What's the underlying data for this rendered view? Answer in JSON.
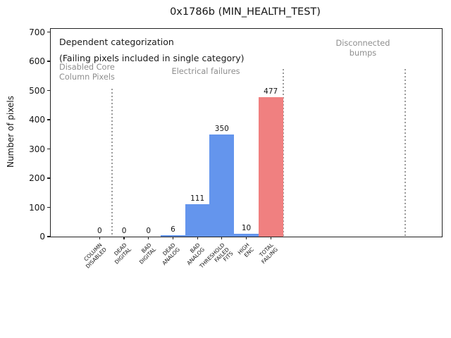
{
  "figure": {
    "title": "0x1786b (MIN_HEALTH_TEST)"
  },
  "chart_data": {
    "type": "bar",
    "title": "0x1786b (MIN_HEALTH_TEST)",
    "xlabel": "",
    "ylabel": "Number of pixels",
    "ylim": [
      0,
      711
    ],
    "yticks": [
      0,
      100,
      200,
      300,
      400,
      500,
      600,
      700
    ],
    "xlim_category_units": [
      -2,
      14
    ],
    "grid": false,
    "legend": "none",
    "bar_width": 1.0,
    "categories": [
      [
        "COLUMN",
        "DISABLED"
      ],
      [
        "DEAD",
        "DIGITAL"
      ],
      [
        "BAD",
        "DIGITAL"
      ],
      [
        "DEAD",
        "ANALOG"
      ],
      [
        "BAD",
        "ANALOG"
      ],
      [
        "THRESHOLD",
        "FAILED",
        "FITS"
      ],
      [
        "HIGH",
        "ENC"
      ],
      [
        "TOTAL",
        "FAILING"
      ]
    ],
    "values": [
      0,
      0,
      0,
      6,
      111,
      350,
      10,
      477
    ],
    "value_labels": [
      "0",
      "0",
      "0",
      "6",
      "111",
      "350",
      "10",
      "477"
    ],
    "bar_colors": [
      "#6495ed",
      "#6495ed",
      "#6495ed",
      "#6495ed",
      "#6495ed",
      "#6495ed",
      "#6495ed",
      "#f08080"
    ],
    "colors": {
      "blue_bar": "#6495ed",
      "red_bar": "#f08080",
      "annotation_gray": "#8e8e8e",
      "axis_black": "#222222",
      "separator_gray": "#9a9a9a"
    },
    "separators": [
      {
        "x_category_units": 0.5,
        "ymax_value": 506
      },
      {
        "x_category_units": 7.5,
        "ymax_value": 573
      },
      {
        "x_category_units": 12.5,
        "ymax_value": 573
      }
    ],
    "annotations": [
      {
        "id": "dependent-categorization-note",
        "lines": [
          "Dependent categorization",
          "(Failing pixels included in single category)"
        ],
        "color": "#1a1a1a",
        "size": 12.5,
        "line_height": 23,
        "x": 12,
        "y": 7,
        "align": "left"
      },
      {
        "id": "disabled-core-column-pixels-label",
        "lines": [
          "Disabled Core",
          "Column Pixels"
        ],
        "color": "#8e8e8e",
        "size": 11.3,
        "line_height": 13.5,
        "x": 12,
        "y": 48,
        "align": "left"
      },
      {
        "id": "electrical-failures-label",
        "lines": [
          "Electrical failures"
        ],
        "color": "#8e8e8e",
        "size": 11.3,
        "line_height": 13.5,
        "x": 220,
        "y": 54,
        "align": "center"
      },
      {
        "id": "disconnected-bumps-label",
        "lines": [
          "Disconnected",
          "bumps"
        ],
        "color": "#8e8e8e",
        "size": 11.3,
        "line_height": 13.5,
        "x": 443,
        "y": 14,
        "align": "center"
      }
    ]
  }
}
